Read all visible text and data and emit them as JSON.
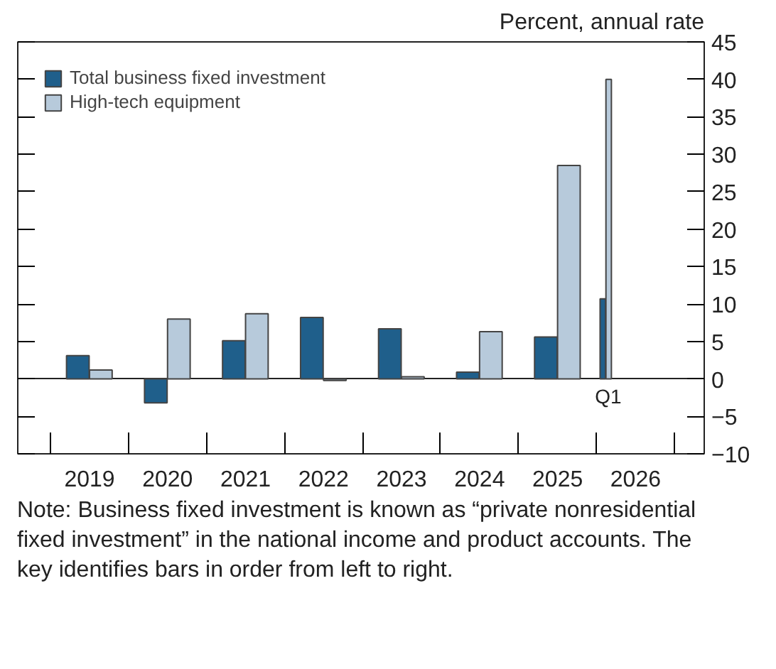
{
  "chart_data": {
    "type": "bar",
    "ylabel": "Percent, annual rate",
    "categories": [
      "2019",
      "2020",
      "2021",
      "2022",
      "2023",
      "2024",
      "2025",
      "2026"
    ],
    "series": [
      {
        "name": "Total business fixed investment",
        "color": "#1f5f8b",
        "values": [
          3.1,
          -3.2,
          5.1,
          8.2,
          6.7,
          0.9,
          5.6,
          10.7
        ]
      },
      {
        "name": "High-tech equipment",
        "color": "#b7cadb",
        "values": [
          1.2,
          8.0,
          8.7,
          -0.2,
          0.3,
          6.3,
          28.5,
          40.0
        ]
      }
    ],
    "ylim": [
      -10,
      45
    ],
    "yticks": [
      {
        "value": -10,
        "label": "−10"
      },
      {
        "value": -5,
        "label": "−5"
      },
      0,
      5,
      10,
      15,
      20,
      25,
      30,
      35,
      40,
      45
    ],
    "legend": "top left",
    "annotations": [
      "Q1",
      "Note: Business fixed investment is known as “private nonresidential fixed investment” in the national income and product accounts. The key identifies bars in order from left to right."
    ]
  }
}
